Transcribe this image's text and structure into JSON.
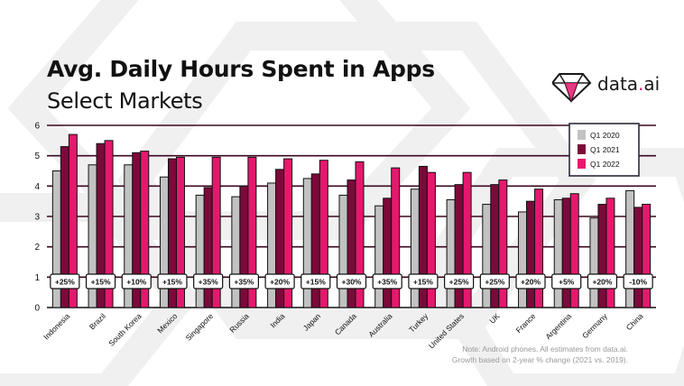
{
  "header": {
    "title": "Avg. Daily Hours Spent in Apps",
    "subtitle": "Select Markets"
  },
  "logo": {
    "name": "data",
    "dot": ".",
    "suffix": "ai",
    "icon": "diamond-logo-icon"
  },
  "note": {
    "line1": "Note: Android phones. All estimates from data.ai.",
    "line2": "Growth based on 2-year % change (2021 vs. 2019)."
  },
  "colors": {
    "q1_2020": "#c2c2c2",
    "q1_2021": "#7b0a3a",
    "q1_2022": "#e6186d",
    "outline": "#111111",
    "gridline": "#3a0820"
  },
  "chart_data": {
    "type": "bar",
    "title": "Avg. Daily Hours Spent in Apps",
    "subtitle": "Select Markets",
    "ylim": [
      0,
      6
    ],
    "yticks": [
      "0",
      "1",
      "2",
      "3",
      "4",
      "5",
      "6"
    ],
    "grid": true,
    "legend_position": "top-right",
    "categories": [
      "Indonesia",
      "Brazil",
      "South Korea",
      "Mexico",
      "Singapore",
      "Russia",
      "India",
      "Japan",
      "Canada",
      "Australia",
      "Turkey",
      "United States",
      "UK",
      "France",
      "Argentina",
      "Germany",
      "China"
    ],
    "series": [
      {
        "name": "Q1 2020",
        "values": [
          4.5,
          4.7,
          4.7,
          4.3,
          3.7,
          3.65,
          4.1,
          4.25,
          3.7,
          3.35,
          3.9,
          3.55,
          3.4,
          3.15,
          3.55,
          2.95,
          3.85
        ]
      },
      {
        "name": "Q1 2021",
        "values": [
          5.3,
          5.4,
          5.1,
          4.9,
          3.95,
          4.0,
          4.55,
          4.4,
          4.2,
          3.6,
          4.65,
          4.05,
          4.05,
          3.5,
          3.6,
          3.4,
          3.3
        ]
      },
      {
        "name": "Q1 2022",
        "values": [
          5.7,
          5.5,
          5.15,
          4.95,
          4.95,
          4.95,
          4.9,
          4.85,
          4.8,
          4.6,
          4.45,
          4.45,
          4.2,
          3.9,
          3.75,
          3.6,
          3.4
        ]
      }
    ],
    "growth_labels": [
      "+25%",
      "+15%",
      "+10%",
      "+15%",
      "+35%",
      "+35%",
      "+20%",
      "+15%",
      "+30%",
      "+35%",
      "+15%",
      "+25%",
      "+25%",
      "+20%",
      "+5%",
      "+20%",
      "-10%"
    ]
  }
}
